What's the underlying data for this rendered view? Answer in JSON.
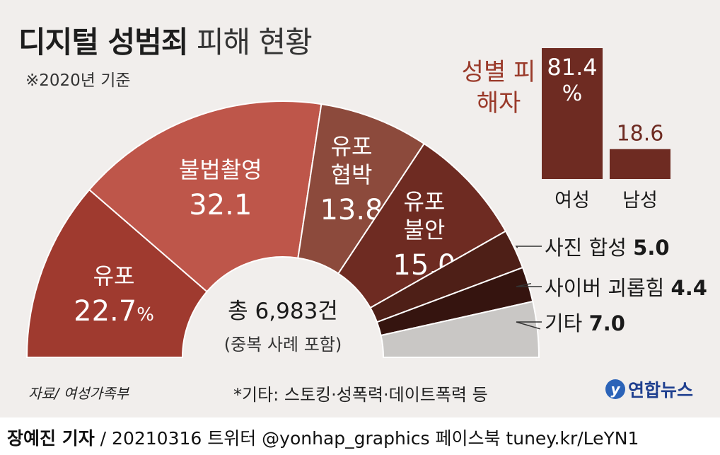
{
  "title_bold": "디지털 성범죄",
  "title_light": "피해 현황",
  "basis": "※2020년 기준",
  "total_label": "총 6,983건",
  "total_sub": "(중복 사례 포함)",
  "gender_title": "성별 피해자",
  "source": "자료/ 여성가족부",
  "footnote": "*기타: 스토킹·성폭력·데이트폭력 등",
  "logo_text": "연합뉴스",
  "byline_name": "장예진 기자",
  "byline_rest": " / 20210316 트위터 @yonhap_graphics  페이스북 tuney.kr/LeYN1",
  "chart_data": [
    {
      "type": "pie",
      "categories": [
        "유포",
        "불법촬영",
        "유포 협박",
        "유포 불안",
        "사진 합성",
        "사이버 괴롭힘",
        "기타"
      ],
      "values": [
        22.7,
        32.1,
        13.8,
        15.0,
        5.0,
        4.4,
        7.0
      ],
      "value_labels": [
        "22.7",
        "32.1",
        "13.8",
        "15.0",
        "5.0",
        "4.4",
        "7.0"
      ],
      "unit": "%",
      "colors": [
        "#9f3a2f",
        "#be564a",
        "#8c4a3c",
        "#6e2b22",
        "#4e1f17",
        "#35140f",
        "#c9c7c5"
      ],
      "label_lines": [
        [
          "유포"
        ],
        [
          "불법촬영"
        ],
        [
          "유포",
          "협박"
        ],
        [
          "유포",
          "불안"
        ],
        [
          "사진 합성"
        ],
        [
          "사이버 괴롭힘"
        ],
        [
          "기타"
        ]
      ],
      "layout": "semicircle"
    },
    {
      "type": "bar",
      "categories": [
        "여성",
        "남성"
      ],
      "values": [
        81.4,
        18.6
      ],
      "value_labels": [
        "81.4",
        "18.6"
      ],
      "unit": "%",
      "colors": [
        "#6e2b22",
        "#6e2b22"
      ]
    }
  ]
}
